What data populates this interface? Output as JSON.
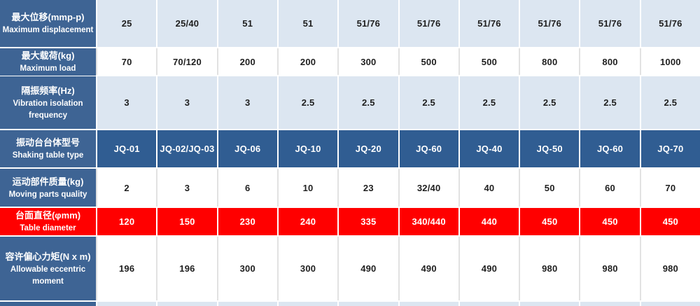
{
  "table": {
    "description_rows": [
      {
        "label_zh": "最大位移(mmp-p)",
        "label_en": "Maximum displacement",
        "style": "lightblue",
        "values": [
          "25",
          "25/40",
          "51",
          "51",
          "51/76",
          "51/76",
          "51/76",
          "51/76",
          "51/76",
          "51/76"
        ]
      },
      {
        "label_zh": "最大载荷(kg)",
        "label_en": "Maximum load",
        "style": "white",
        "values": [
          "70",
          "70/120",
          "200",
          "200",
          "300",
          "500",
          "500",
          "800",
          "800",
          "1000"
        ]
      },
      {
        "label_zh": "隔振频率(Hz)",
        "label_en": "Vibration isolation frequency",
        "style": "lightblue",
        "values": [
          "3",
          "3",
          "3",
          "2.5",
          "2.5",
          "2.5",
          "2.5",
          "2.5",
          "2.5",
          "2.5"
        ]
      },
      {
        "label_zh": "振动台台体型号",
        "label_en": "Shaking table type",
        "style": "blue",
        "values": [
          "JQ-01",
          "JQ-02/JQ-03",
          "JQ-06",
          "JQ-10",
          "JQ-20",
          "JQ-60",
          "JQ-40",
          "JQ-50",
          "JQ-60",
          "JQ-70"
        ]
      },
      {
        "label_zh": "运动部件质量(kg)",
        "label_en": "Moving parts quality",
        "style": "white",
        "values": [
          "2",
          "3",
          "6",
          "10",
          "23",
          "32/40",
          "40",
          "50",
          "60",
          "70"
        ]
      },
      {
        "label_zh": "台面直径(φmm)",
        "label_en": "Table diameter",
        "style": "red",
        "values": [
          "120",
          "150",
          "230",
          "240",
          "335",
          "340/440",
          "440",
          "450",
          "450",
          "450"
        ]
      },
      {
        "label_zh": "容许偏心力矩(N x m)",
        "label_en": "Allowable eccentric moment",
        "style": "white",
        "values": [
          "196",
          "196",
          "300",
          "300",
          "490",
          "490",
          "490",
          "980",
          "980",
          "980"
        ]
      },
      {
        "label_zh": "",
        "label_en": "",
        "style": "lightblue",
        "values": [
          "",
          "",
          "",
          "",
          "",
          "",
          "",
          "",
          "",
          ""
        ]
      }
    ],
    "colors": {
      "header_bg": "#3e6494",
      "row_blue_bg": "#305d92",
      "row_lightblue_bg": "#dce6f1",
      "row_red_bg": "#ff0000",
      "row_white_bg": "#ffffff",
      "separator_white": "#ffffff",
      "separator_gray": "#e2e2e2",
      "text_dark": "#1f1f1f",
      "text_white": "#ffffff"
    }
  }
}
